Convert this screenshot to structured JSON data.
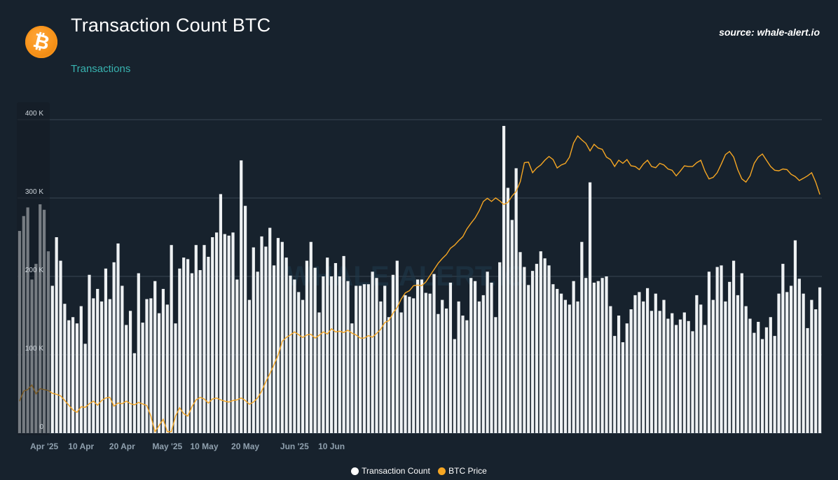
{
  "header": {
    "title": "Transaction Count BTC",
    "subtitle": "Transactions",
    "source": "source: whale-alert.io",
    "logo_glyph": "₿",
    "logo_icon": "bitcoin-icon"
  },
  "colors": {
    "background": "#17222d",
    "bars": "#eef1f3",
    "line": "#f5a623",
    "grid": "#3a4652",
    "subtitle": "#38b3b0",
    "brand": "#f7931a"
  },
  "chart_data": {
    "type": "bar",
    "y_axis": {
      "ylim": [
        0,
        400000
      ],
      "ticks": [
        {
          "value": 0,
          "label": "0"
        },
        {
          "value": 100000,
          "label": "100 K"
        },
        {
          "value": 200000,
          "label": "200 K"
        },
        {
          "value": 300000,
          "label": "300 K"
        },
        {
          "value": 400000,
          "label": "400 K"
        }
      ]
    },
    "x_axis": {
      "start_date": "2025-03-26",
      "labels": [
        {
          "date": "2025-04-01",
          "label": "Apr '25"
        },
        {
          "date": "2025-04-10",
          "label": "10 Apr"
        },
        {
          "date": "2025-04-20",
          "label": "20 Apr"
        },
        {
          "date": "2025-05-01",
          "label": "May '25"
        },
        {
          "date": "2025-05-10",
          "label": "10 May"
        },
        {
          "date": "2025-05-20",
          "label": "20 May"
        },
        {
          "date": "2025-06-01",
          "label": "Jun '25"
        },
        {
          "date": "2025-06-10",
          "label": "10 Jun"
        }
      ]
    },
    "series": [
      {
        "name": "Transaction Count",
        "kind": "bar",
        "values": [
          258000,
          277000,
          288000,
          196000,
          216000,
          292000,
          285000,
          232000,
          188000,
          250000,
          220000,
          165000,
          144000,
          148000,
          140000,
          162000,
          114000,
          202000,
          172000,
          184000,
          168000,
          210000,
          171000,
          218000,
          242000,
          188000,
          138000,
          156000,
          102000,
          204000,
          141000,
          171000,
          172000,
          194000,
          153000,
          184000,
          164000,
          240000,
          140000,
          210000,
          224000,
          222000,
          204000,
          240000,
          208000,
          240000,
          225000,
          250000,
          256000,
          305000,
          254000,
          252000,
          256000,
          196000,
          348000,
          290000,
          170000,
          237000,
          206000,
          251000,
          238000,
          262000,
          214000,
          249000,
          244000,
          224000,
          201000,
          196000,
          180000,
          170000,
          220000,
          244000,
          211000,
          154000,
          200000,
          224000,
          200000,
          217000,
          200000,
          226000,
          194000,
          140000,
          188000,
          188000,
          190000,
          190000,
          206000,
          198000,
          168000,
          188000,
          148000,
          202000,
          220000,
          154000,
          176000,
          174000,
          172000,
          196000,
          196000,
          179000,
          178000,
          203000,
          152000,
          170000,
          159000,
          192000,
          120000,
          168000,
          150000,
          144000,
          198000,
          194000,
          168000,
          176000,
          206000,
          192000,
          148000,
          218000,
          392000,
          313000,
          272000,
          338000,
          231000,
          212000,
          189000,
          207000,
          216000,
          232000,
          223000,
          214000,
          190000,
          184000,
          178000,
          170000,
          164000,
          194000,
          168000,
          244000,
          198000,
          320000,
          192000,
          194000,
          198000,
          200000,
          162000,
          124000,
          150000,
          116000,
          140000,
          158000,
          176000,
          180000,
          168000,
          185000,
          156000,
          178000,
          156000,
          170000,
          146000,
          153000,
          138000,
          145000,
          154000,
          143000,
          130000,
          176000,
          164000,
          138000,
          206000,
          170000,
          212000,
          214000,
          168000,
          193000,
          220000,
          176000,
          204000,
          162000,
          146000,
          128000,
          142000,
          120000,
          135000,
          148000,
          124000,
          178000,
          216000,
          180000,
          188000,
          246000,
          197000,
          178000,
          134000,
          170000,
          158000,
          186000
        ]
      },
      {
        "name": "BTC Price",
        "kind": "line",
        "values": [
          0.098,
          0.13,
          0.135,
          0.15,
          0.121,
          0.138,
          0.135,
          0.132,
          0.123,
          0.12,
          0.115,
          0.1,
          0.085,
          0.07,
          0.062,
          0.08,
          0.078,
          0.09,
          0.098,
          0.085,
          0.1,
          0.108,
          0.11,
          0.082,
          0.092,
          0.09,
          0.098,
          0.09,
          0.086,
          0.094,
          0.089,
          0.084,
          0.05,
          0.0,
          0.02,
          0.04,
          0.0,
          0.0,
          0.05,
          0.077,
          0.058,
          0.05,
          0.08,
          0.102,
          0.11,
          0.105,
          0.092,
          0.105,
          0.108,
          0.102,
          0.098,
          0.095,
          0.1,
          0.102,
          0.108,
          0.1,
          0.088,
          0.095,
          0.108,
          0.13,
          0.16,
          0.186,
          0.215,
          0.245,
          0.29,
          0.302,
          0.31,
          0.32,
          0.311,
          0.302,
          0.31,
          0.312,
          0.3,
          0.309,
          0.32,
          0.313,
          0.33,
          0.32,
          0.322,
          0.318,
          0.325,
          0.316,
          0.31,
          0.3,
          0.3,
          0.308,
          0.303,
          0.315,
          0.328,
          0.35,
          0.356,
          0.38,
          0.398,
          0.425,
          0.445,
          0.452,
          0.468,
          0.47,
          0.468,
          0.48,
          0.5,
          0.52,
          0.54,
          0.555,
          0.568,
          0.588,
          0.598,
          0.612,
          0.625,
          0.65,
          0.668,
          0.685,
          0.708,
          0.738,
          0.748,
          0.738,
          0.749,
          0.74,
          0.728,
          0.735,
          0.755,
          0.77,
          0.801,
          0.862,
          0.864,
          0.83,
          0.845,
          0.855,
          0.87,
          0.882,
          0.872,
          0.845,
          0.855,
          0.86,
          0.88,
          0.925,
          0.948,
          0.935,
          0.924,
          0.9,
          0.921,
          0.909,
          0.905,
          0.88,
          0.872,
          0.85,
          0.87,
          0.86,
          0.872,
          0.852,
          0.85,
          0.84,
          0.858,
          0.87,
          0.85,
          0.846,
          0.86,
          0.855,
          0.842,
          0.838,
          0.82,
          0.835,
          0.852,
          0.85,
          0.85,
          0.862,
          0.87,
          0.835,
          0.81,
          0.815,
          0.83,
          0.858,
          0.888,
          0.898,
          0.88,
          0.84,
          0.81,
          0.8,
          0.82,
          0.86,
          0.88,
          0.89,
          0.87,
          0.85,
          0.838,
          0.836,
          0.842,
          0.84,
          0.825,
          0.818,
          0.805,
          0.812,
          0.82,
          0.83,
          0.8,
          0.76
        ]
      }
    ],
    "legend": {
      "position": "bottom-center",
      "entries": [
        "Transaction Count",
        "BTC Price"
      ]
    },
    "grid": {
      "horizontal": true,
      "vertical": false
    },
    "watermark": "WHALE-ALERT.IO"
  }
}
